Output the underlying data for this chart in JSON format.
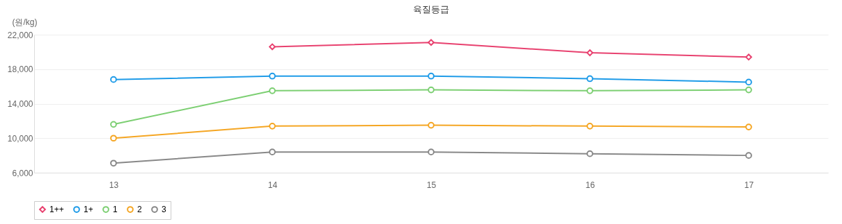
{
  "chart_data": {
    "type": "line",
    "title": "육질등급",
    "ylabel": "(원/kg)",
    "categories": [
      "13",
      "14",
      "15",
      "16",
      "17"
    ],
    "series": [
      {
        "name": "1++",
        "color": "#e8416f",
        "marker": "diamond",
        "values": [
          null,
          20600,
          21100,
          19900,
          19400
        ]
      },
      {
        "name": "1+",
        "color": "#1e9be8",
        "marker": "circle",
        "values": [
          16800,
          17200,
          17200,
          16900,
          16500
        ]
      },
      {
        "name": "1",
        "color": "#7ccf72",
        "marker": "circle",
        "values": [
          11600,
          15500,
          15600,
          15500,
          15600
        ]
      },
      {
        "name": "2",
        "color": "#f5a623",
        "marker": "circle",
        "values": [
          10000,
          11400,
          11500,
          11400,
          11300
        ]
      },
      {
        "name": "3",
        "color": "#888888",
        "marker": "circle",
        "values": [
          7100,
          8400,
          8400,
          8200,
          8000
        ]
      }
    ],
    "ylim": [
      6000,
      22000
    ],
    "yticks": [
      {
        "value": 6000,
        "label": "6,000"
      },
      {
        "value": 10000,
        "label": "10,000"
      },
      {
        "value": 14000,
        "label": "14,000"
      },
      {
        "value": 18000,
        "label": "18,000"
      },
      {
        "value": 22000,
        "label": "22,000"
      }
    ],
    "grid": "y",
    "legend": "bottom",
    "line_style": "solid"
  }
}
